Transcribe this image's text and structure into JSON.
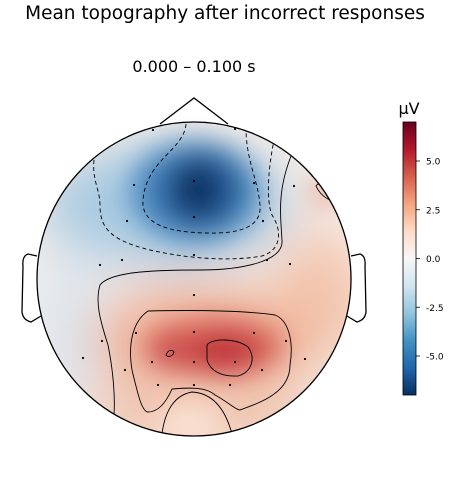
{
  "figure": {
    "title": "Mean topography after incorrect responses",
    "subtitle": "0.000 – 0.100 s"
  },
  "colorbar": {
    "unit_label": "µV",
    "colormap": "RdBu_r",
    "vmin": -7.0,
    "vmax": 7.0,
    "ticks": [
      {
        "value": 5.0,
        "label": "5.0"
      },
      {
        "value": 2.5,
        "label": "2.5"
      },
      {
        "value": 0.0,
        "label": "0.0"
      },
      {
        "value": -2.5,
        "label": "-2.5"
      },
      {
        "value": -5.0,
        "label": "-5.0"
      }
    ]
  },
  "chart_data": {
    "type": "heatmap",
    "kind": "eeg-scalp-topography",
    "title": "Mean topography after incorrect responses",
    "subtitle": "0.000 – 0.100 s",
    "unit": "µV",
    "value_range": [
      -7.0,
      7.0
    ],
    "features": [
      {
        "name": "frontal-negativity",
        "peak_value": -7.0
      },
      {
        "name": "centro-parietal-positivity",
        "peak_value": 6.8
      },
      {
        "name": "right-frontal-positive-spot",
        "peak_value": 4.0
      }
    ],
    "contour_levels": [
      -5.0,
      -2.5,
      0.0,
      2.5,
      5.0
    ],
    "sensor_count": 30
  },
  "colors": {
    "outline": "#000000",
    "background": "#ffffff"
  }
}
